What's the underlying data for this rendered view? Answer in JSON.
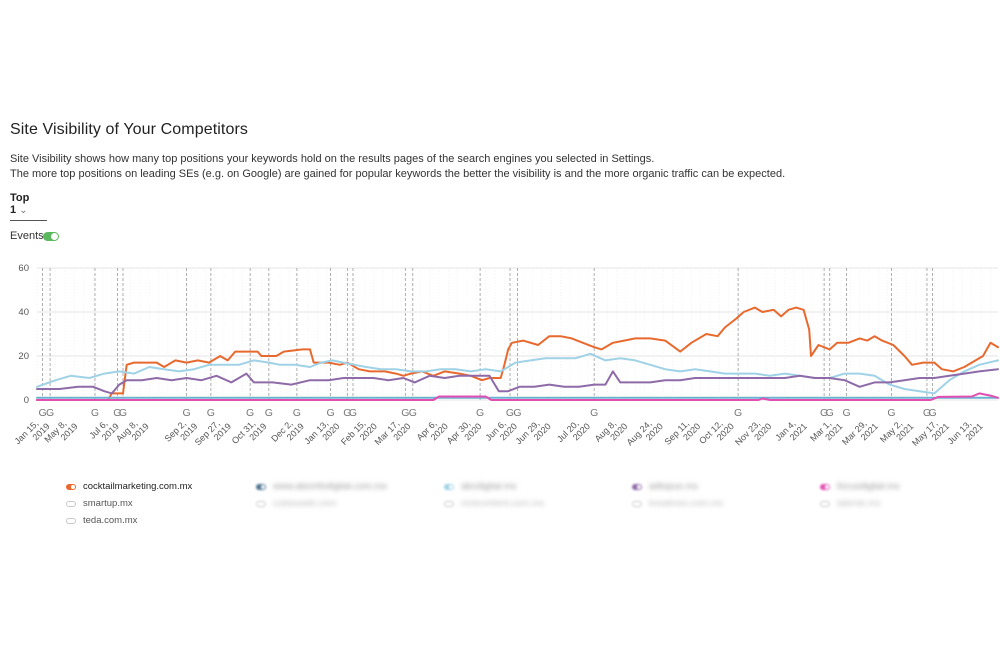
{
  "header": {
    "title": "Site Visibility of Your Competitors",
    "desc_line1": "Site Visibility shows how many top positions your keywords hold on the results pages of the search engines you selected in Settings.",
    "desc_line2": "The more top positions on leading SEs (e.g. on Google) are gained for popular keywords the better the visibility is and the more organic traffic can be expected."
  },
  "controls": {
    "top_selector": "Top 1",
    "events_label": "Events",
    "events_enabled": true
  },
  "chart_data": {
    "type": "line",
    "y_ticks": [
      "60",
      "40",
      "20",
      "0"
    ],
    "ylim": [
      0,
      60
    ],
    "x_labels": [
      {
        "t": 0.0,
        "l1": "Jan 15,",
        "l2": "2019"
      },
      {
        "t": 0.75,
        "l1": "May 8,",
        "l2": "2019"
      },
      {
        "t": 1.85,
        "l1": "Jul 6,",
        "l2": "2019"
      },
      {
        "t": 2.65,
        "l1": "Aug 8,",
        "l2": "2019"
      },
      {
        "t": 3.95,
        "l1": "Sep 2,",
        "l2": "2019"
      },
      {
        "t": 4.85,
        "l1": "Sep 27,",
        "l2": "2019"
      },
      {
        "t": 5.8,
        "l1": "Oct 31,",
        "l2": "2019"
      },
      {
        "t": 6.8,
        "l1": "Dec 2,",
        "l2": "2019"
      },
      {
        "t": 7.75,
        "l1": "Jan 13,",
        "l2": "2020"
      },
      {
        "t": 8.75,
        "l1": "Feb 15,",
        "l2": "2020"
      },
      {
        "t": 9.65,
        "l1": "Mar 17,",
        "l2": "2020"
      },
      {
        "t": 10.65,
        "l1": "Apr 6,",
        "l2": "2020"
      },
      {
        "t": 11.55,
        "l1": "Apr 30,",
        "l2": "2020"
      },
      {
        "t": 12.5,
        "l1": "Jun 6,",
        "l2": "2020"
      },
      {
        "t": 13.4,
        "l1": "Jun 29,",
        "l2": "2020"
      },
      {
        "t": 14.45,
        "l1": "Jul 20,",
        "l2": "2020"
      },
      {
        "t": 15.45,
        "l1": "Aug 8,",
        "l2": "2020"
      },
      {
        "t": 16.4,
        "l1": "Aug 24,",
        "l2": "2020"
      },
      {
        "t": 17.4,
        "l1": "Sep 11,",
        "l2": "2020"
      },
      {
        "t": 18.3,
        "l1": "Oct 12,",
        "l2": "2020"
      },
      {
        "t": 19.3,
        "l1": "Nov 23,",
        "l2": "2020"
      },
      {
        "t": 20.25,
        "l1": "Jan 4,",
        "l2": "2021"
      },
      {
        "t": 21.2,
        "l1": "Mar 1,",
        "l2": "2021"
      },
      {
        "t": 22.15,
        "l1": "Mar 29,",
        "l2": "2021"
      },
      {
        "t": 23.1,
        "l1": "May 2,",
        "l2": "2021"
      },
      {
        "t": 24.05,
        "l1": "May 17,",
        "l2": "2021"
      },
      {
        "t": 24.95,
        "l1": "Jun 13,",
        "l2": "2021"
      }
    ],
    "event_markers": [
      {
        "t": 0.15,
        "label": "G"
      },
      {
        "t": 0.35,
        "label": "G"
      },
      {
        "t": 1.55,
        "label": "G"
      },
      {
        "t": 2.15,
        "label": "G"
      },
      {
        "t": 2.3,
        "label": "G"
      },
      {
        "t": 4.0,
        "label": "G"
      },
      {
        "t": 4.65,
        "label": "G"
      },
      {
        "t": 5.7,
        "label": "G"
      },
      {
        "t": 6.2,
        "label": "G"
      },
      {
        "t": 6.95,
        "label": "G"
      },
      {
        "t": 7.85,
        "label": "G"
      },
      {
        "t": 8.3,
        "label": "G"
      },
      {
        "t": 8.45,
        "label": "G"
      },
      {
        "t": 9.85,
        "label": "G"
      },
      {
        "t": 10.05,
        "label": "G"
      },
      {
        "t": 11.85,
        "label": "G"
      },
      {
        "t": 12.65,
        "label": "G"
      },
      {
        "t": 12.85,
        "label": "G"
      },
      {
        "t": 14.9,
        "label": "G"
      },
      {
        "t": 18.75,
        "label": "G"
      },
      {
        "t": 21.05,
        "label": "G"
      },
      {
        "t": 21.2,
        "label": "G"
      },
      {
        "t": 21.65,
        "label": "G"
      },
      {
        "t": 22.85,
        "label": "G"
      },
      {
        "t": 23.8,
        "label": "G"
      },
      {
        "t": 23.95,
        "label": "G"
      }
    ],
    "series": [
      {
        "name": "cocktailmarketing.com.mx",
        "color": "#e8692e",
        "values": [
          [
            0,
            0
          ],
          [
            0.8,
            0
          ],
          [
            1.5,
            0
          ],
          [
            1.9,
            0
          ],
          [
            2.0,
            3
          ],
          [
            2.3,
            3
          ],
          [
            2.4,
            16
          ],
          [
            2.6,
            17
          ],
          [
            3.2,
            17
          ],
          [
            3.4,
            15
          ],
          [
            3.7,
            18
          ],
          [
            4.0,
            17
          ],
          [
            4.3,
            18
          ],
          [
            4.6,
            17
          ],
          [
            4.9,
            20
          ],
          [
            5.1,
            18
          ],
          [
            5.3,
            22
          ],
          [
            5.6,
            22
          ],
          [
            5.9,
            22
          ],
          [
            6.0,
            20
          ],
          [
            6.4,
            20
          ],
          [
            6.6,
            22
          ],
          [
            7.1,
            23
          ],
          [
            7.3,
            23
          ],
          [
            7.4,
            17
          ],
          [
            7.8,
            17
          ],
          [
            8.1,
            16
          ],
          [
            8.3,
            17
          ],
          [
            8.6,
            14
          ],
          [
            8.9,
            13
          ],
          [
            9.3,
            13
          ],
          [
            9.6,
            12
          ],
          [
            9.8,
            11
          ],
          [
            10.0,
            12
          ],
          [
            10.3,
            13
          ],
          [
            10.6,
            11
          ],
          [
            10.9,
            13
          ],
          [
            11.3,
            12
          ],
          [
            11.6,
            11
          ],
          [
            11.9,
            9
          ],
          [
            12.1,
            10
          ],
          [
            12.4,
            10
          ],
          [
            12.5,
            16
          ],
          [
            12.6,
            23
          ],
          [
            12.7,
            26
          ],
          [
            13.0,
            27
          ],
          [
            13.4,
            25
          ],
          [
            13.7,
            29
          ],
          [
            14.0,
            29
          ],
          [
            14.3,
            28
          ],
          [
            14.6,
            26
          ],
          [
            14.9,
            24
          ],
          [
            15.1,
            23
          ],
          [
            15.4,
            26
          ],
          [
            15.7,
            27
          ],
          [
            16.0,
            28
          ],
          [
            16.4,
            28
          ],
          [
            16.8,
            27
          ],
          [
            17.2,
            22
          ],
          [
            17.5,
            26
          ],
          [
            17.9,
            30
          ],
          [
            18.2,
            29
          ],
          [
            18.4,
            33
          ],
          [
            18.7,
            37
          ],
          [
            18.9,
            40
          ],
          [
            19.2,
            42
          ],
          [
            19.4,
            40
          ],
          [
            19.7,
            41
          ],
          [
            19.9,
            38
          ],
          [
            20.1,
            41
          ],
          [
            20.3,
            42
          ],
          [
            20.5,
            41
          ],
          [
            20.65,
            32
          ],
          [
            20.7,
            20
          ],
          [
            20.9,
            25
          ],
          [
            21.2,
            23
          ],
          [
            21.4,
            26
          ],
          [
            21.7,
            26
          ],
          [
            22.0,
            28
          ],
          [
            22.2,
            27
          ],
          [
            22.4,
            29
          ],
          [
            22.6,
            27
          ],
          [
            22.9,
            25
          ],
          [
            23.2,
            20
          ],
          [
            23.4,
            16
          ],
          [
            23.7,
            17
          ],
          [
            24.0,
            17
          ],
          [
            24.2,
            14
          ],
          [
            24.5,
            13
          ],
          [
            24.8,
            15
          ],
          [
            25.1,
            18
          ],
          [
            25.3,
            20
          ],
          [
            25.5,
            26
          ],
          [
            25.7,
            24
          ]
        ]
      },
      {
        "name": "blurred-competitor-1",
        "color": "#6cb2d0",
        "values": [
          [
            0,
            1
          ],
          [
            25.7,
            1
          ]
        ]
      },
      {
        "name": "abcdigital.mx",
        "color": "#9fd2e6",
        "values": [
          [
            0,
            6
          ],
          [
            0.5,
            9
          ],
          [
            0.9,
            11
          ],
          [
            1.4,
            10
          ],
          [
            1.8,
            12
          ],
          [
            2.2,
            13
          ],
          [
            2.6,
            12
          ],
          [
            3.0,
            15
          ],
          [
            3.4,
            14
          ],
          [
            3.8,
            13
          ],
          [
            4.2,
            14
          ],
          [
            4.6,
            16
          ],
          [
            5.0,
            16
          ],
          [
            5.4,
            16
          ],
          [
            5.8,
            18
          ],
          [
            6.2,
            17
          ],
          [
            6.5,
            16
          ],
          [
            6.9,
            16
          ],
          [
            7.3,
            15
          ],
          [
            7.6,
            17
          ],
          [
            7.9,
            18
          ],
          [
            8.2,
            17
          ],
          [
            8.5,
            16
          ],
          [
            8.8,
            15
          ],
          [
            9.2,
            14
          ],
          [
            9.6,
            14
          ],
          [
            10.0,
            13
          ],
          [
            10.4,
            13
          ],
          [
            10.8,
            14
          ],
          [
            11.2,
            14
          ],
          [
            11.6,
            13
          ],
          [
            12.0,
            14
          ],
          [
            12.4,
            13
          ],
          [
            12.8,
            17
          ],
          [
            13.2,
            18
          ],
          [
            13.6,
            19
          ],
          [
            14.0,
            19
          ],
          [
            14.4,
            19
          ],
          [
            14.8,
            21
          ],
          [
            15.2,
            18
          ],
          [
            15.6,
            19
          ],
          [
            16.0,
            18
          ],
          [
            16.4,
            16
          ],
          [
            16.8,
            14
          ],
          [
            17.2,
            13
          ],
          [
            17.6,
            14
          ],
          [
            18.0,
            13
          ],
          [
            18.4,
            12
          ],
          [
            18.8,
            12
          ],
          [
            19.2,
            12
          ],
          [
            19.6,
            11
          ],
          [
            20.0,
            12
          ],
          [
            20.4,
            11
          ],
          [
            20.8,
            10
          ],
          [
            21.2,
            10
          ],
          [
            21.6,
            12
          ],
          [
            22.0,
            12
          ],
          [
            22.4,
            11
          ],
          [
            22.8,
            7
          ],
          [
            23.2,
            5
          ],
          [
            23.6,
            4
          ],
          [
            24.0,
            3
          ],
          [
            24.4,
            9
          ],
          [
            24.8,
            13
          ],
          [
            25.2,
            16
          ],
          [
            25.7,
            18
          ]
        ]
      },
      {
        "name": "adtopus.mx",
        "color": "#8e6ba8",
        "values": [
          [
            0,
            5
          ],
          [
            0.6,
            5
          ],
          [
            1.1,
            6
          ],
          [
            1.5,
            6
          ],
          [
            1.8,
            4
          ],
          [
            2.0,
            3
          ],
          [
            2.2,
            7
          ],
          [
            2.4,
            9
          ],
          [
            2.8,
            9
          ],
          [
            3.2,
            10
          ],
          [
            3.6,
            9
          ],
          [
            4.0,
            10
          ],
          [
            4.4,
            9
          ],
          [
            4.8,
            11
          ],
          [
            5.2,
            8
          ],
          [
            5.6,
            12
          ],
          [
            5.8,
            8
          ],
          [
            6.3,
            8
          ],
          [
            6.8,
            7
          ],
          [
            7.3,
            9
          ],
          [
            7.8,
            9
          ],
          [
            8.2,
            10
          ],
          [
            8.6,
            10
          ],
          [
            9.0,
            10
          ],
          [
            9.4,
            9
          ],
          [
            9.8,
            10
          ],
          [
            10.1,
            8
          ],
          [
            10.5,
            11
          ],
          [
            10.9,
            10
          ],
          [
            11.3,
            11
          ],
          [
            11.7,
            11
          ],
          [
            12.1,
            11
          ],
          [
            12.35,
            4
          ],
          [
            12.6,
            4
          ],
          [
            12.9,
            6
          ],
          [
            13.3,
            6
          ],
          [
            13.7,
            7
          ],
          [
            14.1,
            6
          ],
          [
            14.5,
            6
          ],
          [
            14.9,
            7
          ],
          [
            15.2,
            7
          ],
          [
            15.4,
            13
          ],
          [
            15.6,
            8
          ],
          [
            16.0,
            8
          ],
          [
            16.4,
            8
          ],
          [
            16.8,
            9
          ],
          [
            17.2,
            9
          ],
          [
            17.6,
            10
          ],
          [
            18.0,
            10
          ],
          [
            18.4,
            10
          ],
          [
            18.8,
            10
          ],
          [
            19.2,
            10
          ],
          [
            19.6,
            10
          ],
          [
            20.0,
            10
          ],
          [
            20.4,
            11
          ],
          [
            20.8,
            10
          ],
          [
            21.2,
            10
          ],
          [
            21.6,
            9
          ],
          [
            22.0,
            6
          ],
          [
            22.4,
            8
          ],
          [
            22.8,
            8
          ],
          [
            23.2,
            9
          ],
          [
            23.6,
            10
          ],
          [
            24.0,
            10
          ],
          [
            24.4,
            11
          ],
          [
            24.8,
            12
          ],
          [
            25.2,
            13
          ],
          [
            25.7,
            14
          ]
        ]
      },
      {
        "name": "focusdigital.mx",
        "color": "#e14fb3",
        "values": [
          [
            0,
            0
          ],
          [
            10.6,
            0
          ],
          [
            10.75,
            1.6
          ],
          [
            12.0,
            1.6
          ],
          [
            12.15,
            0
          ],
          [
            19.3,
            0
          ],
          [
            19.4,
            0.7
          ],
          [
            19.6,
            0
          ],
          [
            23.9,
            0
          ],
          [
            24.1,
            1.4
          ],
          [
            25.0,
            1.6
          ],
          [
            25.2,
            3
          ],
          [
            25.5,
            2
          ],
          [
            25.7,
            1
          ]
        ]
      }
    ]
  },
  "legend": {
    "col1": [
      {
        "name": "cocktailmarketing.com.mx",
        "color": "#e8692e"
      },
      {
        "name": "smartup.mx"
      },
      {
        "name": "teda.com.mx"
      }
    ],
    "col2": [
      {
        "name": "www.abcinfodigital.com.mx",
        "color": "#4f7390"
      },
      {
        "name": "cubesweb.com"
      }
    ],
    "col3": [
      {
        "name": "abcdigital.mx",
        "color": "#9fd2e6"
      },
      {
        "name": "rootcontent.com.mx"
      }
    ],
    "col4": [
      {
        "name": "adtopus.mx",
        "color": "#8e6ba8"
      },
      {
        "name": "kreativoo.com.mx"
      }
    ],
    "col5": [
      {
        "name": "focusdigital.mx",
        "color": "#e14fb3"
      },
      {
        "name": "latente.mx"
      }
    ]
  }
}
